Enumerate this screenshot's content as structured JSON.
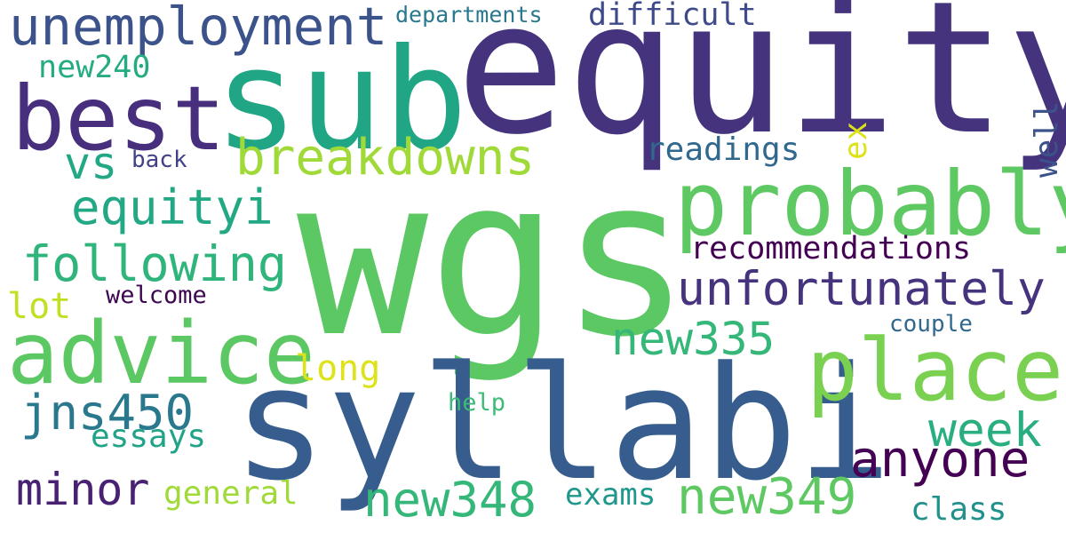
{
  "word_cloud": {
    "words": [
      {
        "text": "wgs",
        "color": "#5cc863"
      },
      {
        "text": "equity",
        "color": "#46337e"
      },
      {
        "text": "sub",
        "color": "#21a685"
      },
      {
        "text": "syllabi",
        "color": "#365d8d"
      },
      {
        "text": "best",
        "color": "#472f7d"
      },
      {
        "text": "advice",
        "color": "#5cc863"
      },
      {
        "text": "probably",
        "color": "#5ec962"
      },
      {
        "text": "place",
        "color": "#7ad151"
      },
      {
        "text": "unemployment",
        "color": "#3b528b"
      },
      {
        "text": "unfortunately",
        "color": "#46337e"
      },
      {
        "text": "breakdowns",
        "color": "#a0da39"
      },
      {
        "text": "following",
        "color": "#2fb47c"
      },
      {
        "text": "equityi",
        "color": "#22a884"
      },
      {
        "text": "anyone",
        "color": "#440154"
      },
      {
        "text": "new348",
        "color": "#35b779"
      },
      {
        "text": "new349",
        "color": "#5ec962"
      },
      {
        "text": "new335",
        "color": "#35b779"
      },
      {
        "text": "jns450",
        "color": "#2a788e"
      },
      {
        "text": "minor",
        "color": "#482173"
      },
      {
        "text": "week",
        "color": "#29af7f"
      },
      {
        "text": "recommendations",
        "color": "#440154"
      },
      {
        "text": "difficult",
        "color": "#3e4a89"
      },
      {
        "text": "readings",
        "color": "#31688e"
      },
      {
        "text": "new240",
        "color": "#25ab82"
      },
      {
        "text": "vs",
        "color": "#22a884"
      },
      {
        "text": "essays",
        "color": "#20a386"
      },
      {
        "text": "general",
        "color": "#a0da39"
      },
      {
        "text": "exams",
        "color": "#1f988b"
      },
      {
        "text": "class",
        "color": "#21918c"
      },
      {
        "text": "long",
        "color": "#dde318"
      },
      {
        "text": "lot",
        "color": "#c2df23"
      },
      {
        "text": "welcome",
        "color": "#3e0751"
      },
      {
        "text": "couple",
        "color": "#31688e"
      },
      {
        "text": "help",
        "color": "#3bbb75"
      },
      {
        "text": "back",
        "color": "#424086"
      },
      {
        "text": "departments",
        "color": "#2a788e"
      },
      {
        "text": "ex",
        "color": "#dde318"
      },
      {
        "text": "well",
        "color": "#3b528b"
      }
    ]
  }
}
